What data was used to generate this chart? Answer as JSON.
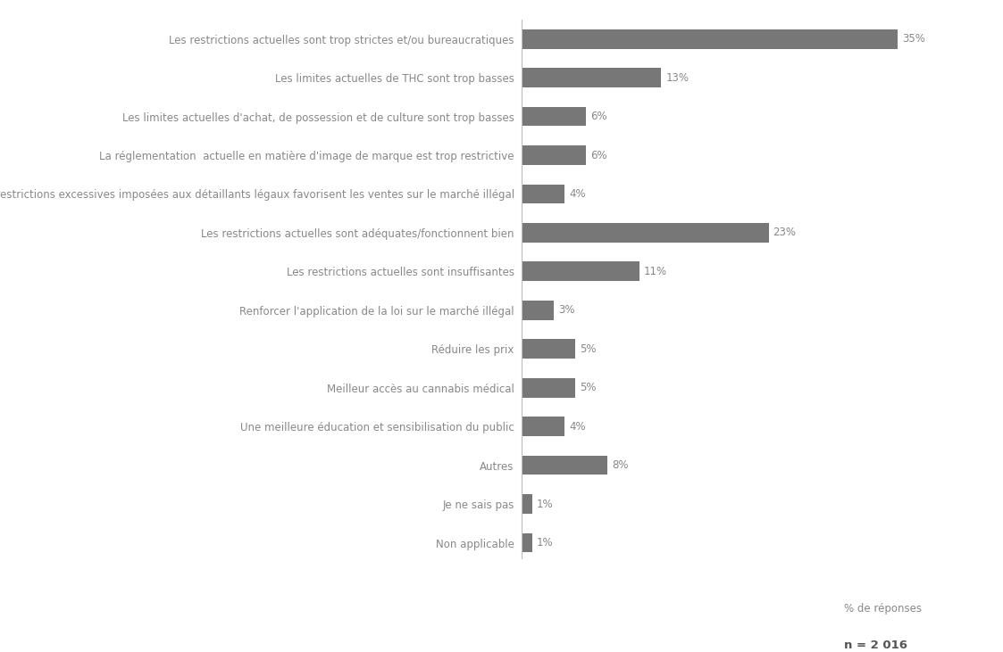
{
  "categories": [
    "Les restrictions actuelles sont trop strictes et/ou bureaucratiques",
    "Les limites actuelles de THC sont trop basses",
    "Les limites actuelles d'achat, de possession et de culture sont trop basses",
    "La réglementation  actuelle en matière d'image de marque est trop restrictive",
    "Les restrictions excessives imposées aux détaillants légaux favorisent les ventes sur le marché illégal",
    "Les restrictions actuelles sont adéquates/fonctionnent bien",
    "Les restrictions actuelles sont insuffisantes",
    "Renforcer l'application de la loi sur le marché illégal",
    "Réduire les prix",
    "Meilleur accès au cannabis médical",
    "Une meilleure éducation et sensibilisation du public",
    "Autres",
    "Je ne sais pas",
    "Non applicable"
  ],
  "values": [
    35,
    13,
    6,
    6,
    4,
    23,
    11,
    3,
    5,
    5,
    4,
    8,
    1,
    1
  ],
  "bar_color": "#777777",
  "label_color": "#888888",
  "value_color": "#888888",
  "xlabel": "% de réponses",
  "note": "n = 2 016",
  "background_color": "#ffffff",
  "bar_height": 0.5,
  "label_fontsize": 8.5,
  "value_fontsize": 8.5,
  "xlabel_fontsize": 8.5,
  "note_fontsize": 9.5
}
